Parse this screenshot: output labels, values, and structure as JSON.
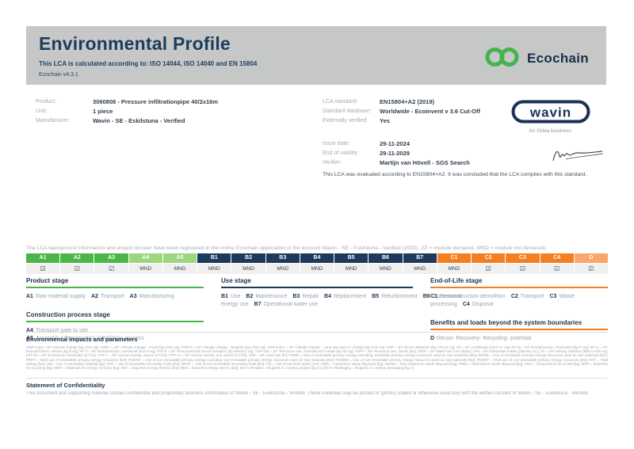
{
  "header": {
    "title": "Environmental Profile",
    "subtitle": "This LCA is calculated according to: ISO 14044, ISO 14040 and EN 15804",
    "version": "Ecochain v4.3.1",
    "logo_text": "Ecochain"
  },
  "colors": {
    "banner_bg": "#c6c7c7",
    "navy": "#1d3c5c",
    "ecochain_green": "#41b549",
    "module_a_green": "#4bb648",
    "module_a_light_green": "#9bd77c",
    "module_b_navy": "#1c3a5e",
    "module_c_orange": "#f57e20",
    "module_d_orange": "#f9a66b",
    "wavin_navy": "#1c3057"
  },
  "product_info": {
    "rows": [
      {
        "label": "Product:",
        "value": "3060808 - Pressure infiltrationpipe 40/2x16m"
      },
      {
        "label": "Unit:",
        "value": "1 piece"
      },
      {
        "label": "Manufacturer:",
        "value": "Wavin - SE - Eskilstuna - Verified"
      }
    ]
  },
  "lca_info": {
    "rows": [
      {
        "label": "LCA standard:",
        "value": "EN15804+A2 (2019)"
      },
      {
        "label": "Standard database:",
        "value": "Worldwide - Ecoinvent v 3.6 Cut-Off"
      },
      {
        "label": "Externally verified:",
        "value": "Yes"
      }
    ]
  },
  "validity_info": {
    "rows": [
      {
        "label": "Issue date:",
        "value": "29-11-2024"
      },
      {
        "label": "End of validity:",
        "value": "29-11-2029"
      },
      {
        "label": "Verifier:",
        "value": "Martijn van Hövell - SGS Search"
      }
    ],
    "evaluation_note": "This LCA was evaluated according to EN15804+A2. It was concluded that the LCA complies with this standard."
  },
  "brand": {
    "wavin_text": "wavin",
    "tagline": "An Orbia business."
  },
  "registration_note": "The LCA background information and project dossier have been registered in the online Ecochain application in the account Wavin - SE - Eskilstuna - Verified (2020). (☑ = module declared, MND = module not declared).",
  "module_table": {
    "declared_symbol": "☑",
    "not_declared_label": "MND",
    "modules": [
      {
        "code": "A1",
        "status": "declared",
        "group": "a-dark"
      },
      {
        "code": "A2",
        "status": "declared",
        "group": "a-dark"
      },
      {
        "code": "A3",
        "status": "declared",
        "group": "a-dark"
      },
      {
        "code": "A4",
        "status": "MND",
        "group": "a-light"
      },
      {
        "code": "A5",
        "status": "MND",
        "group": "a-light"
      },
      {
        "code": "B1",
        "status": "MND",
        "group": "b"
      },
      {
        "code": "B2",
        "status": "MND",
        "group": "b"
      },
      {
        "code": "B3",
        "status": "MND",
        "group": "b"
      },
      {
        "code": "B4",
        "status": "MND",
        "group": "b"
      },
      {
        "code": "B5",
        "status": "MND",
        "group": "b"
      },
      {
        "code": "B6",
        "status": "MND",
        "group": "b"
      },
      {
        "code": "B7",
        "status": "MND",
        "group": "b"
      },
      {
        "code": "C1",
        "status": "MND",
        "group": "c"
      },
      {
        "code": "C2",
        "status": "declared",
        "group": "c"
      },
      {
        "code": "C3",
        "status": "declared",
        "group": "c"
      },
      {
        "code": "C4",
        "status": "declared",
        "group": "c"
      },
      {
        "code": "D",
        "status": "declared",
        "group": "d"
      }
    ]
  },
  "stages": {
    "columns": [
      {
        "sections": [
          {
            "title": "Product stage",
            "accent": "green",
            "layout": "inline",
            "items": [
              {
                "code": "A1",
                "label": "Raw material supply"
              },
              {
                "code": "A2",
                "label": "Transport"
              },
              {
                "code": "A3",
                "label": "Manufacturing"
              }
            ]
          },
          {
            "title": "Construction process stage",
            "accent": "green",
            "layout": "block",
            "items": [
              {
                "code": "A4",
                "label": "Transport gate to site"
              },
              {
                "code": "A5",
                "label": "Assembly / Construction installation process"
              }
            ]
          }
        ]
      },
      {
        "sections": [
          {
            "title": "Use stage",
            "accent": "navy",
            "layout": "inline",
            "items": [
              {
                "code": "B1",
                "label": "Use"
              },
              {
                "code": "B2",
                "label": "Maintenance"
              },
              {
                "code": "B3",
                "label": "Repair"
              },
              {
                "code": "B4",
                "label": "Replacement"
              },
              {
                "code": "B5",
                "label": "Refurbishment"
              },
              {
                "code": "B6",
                "label": "Operational energy use"
              },
              {
                "code": "B7",
                "label": "Operational water use"
              }
            ]
          }
        ]
      },
      {
        "sections": [
          {
            "title": "End-of-Life stage",
            "accent": "orange",
            "layout": "inline",
            "items": [
              {
                "code": "C1",
                "label": "De-construction demolition"
              },
              {
                "code": "C2",
                "label": "Transport"
              },
              {
                "code": "C3",
                "label": "Waste processing"
              },
              {
                "code": "C4",
                "label": "Disposal"
              }
            ]
          },
          {
            "title": "Benefits and loads beyond the system boundaries",
            "accent": "orange",
            "layout": "inline",
            "items": [
              {
                "code": "D",
                "label": "Reuse- Recovery- Recycling- potential"
              }
            ]
          }
        ]
      }
    ]
  },
  "footer": {
    "impacts_title": "Environmental impacts and parameters",
    "impacts_text": "GWP-total = EF Climate change [kg CO2 eq]; GWP-f = EF Climate change - Fossil [kg CO2 eq]; GWP-b = EF Climate change - Biogenic [kg CO2 eq]; GWP-lu/luc = EF Climate change - Land use and LU change [kg CO2 eq]; ODP = EF Ozone depletion [kg CFC11 eq]; AP = EF Acidification [mol H+ eq]; EP-fw = EF Eutrophication, freshwater [kg P eq]; EP-m = EF Eutrophication, marine [kg N eq]; EP-T = EF Eutrophication, terrestrial [mol N eq]; POCP = EF Photochemical ozone formation [kg NMVOC eq]; ADP-mm = EF Resource use, minerals and metals [kg Sb eq]; ADP-f = EF Resource use, fossils [MJ]; WDP = EF Water use [m3 depriv.]; PM = EF Particulate matter [disease inc.]; IR = EF Ionising radiation [kBq U-235 eq]; ETP-fw = EF Ecotoxicity, freshwater [CTUe]; HTP-c = EF Human toxicity, cancer [CTUh]; HTP-nc = EF Human toxicity, non-cancer [CTUh]; SQP = EF Land use [Pt]; PERE = Use of renewable primary energy excluding renewable primary energy resources used as raw materials [MJ]; PERM = Use of renewable primary energy resources used as raw materials [MJ]; PERT = Total use of renewable primary energy resources [MJ]; PENRE = Use of non-renewable primary energy excluding non-renewable primary energy resources used as raw materials [MJ]; PENRM = Use of non-renewable primary energy resources used as raw materials [MJ]; PENRT = Total use of non-renewable primary energy resources [MJ]; PET = Total energy [MJ]; SM = Use of secondary material [kg]; RSF = Use of renewable secondary fuels [MJ]; NRSF = Use of non-renewable secondary fuels [MJ]; FW = Use of net fresh water [m3]; HWD = Hazardous waste disposed [kg]; NHWD = Non-hazardous waste disposed [kg]; RWD = Radioactive waste disposed [kg]; CRU = Components for re-use [kg]; MFR = Materials for recycling [kg]; MER = Materials for energy recovery [kg]; EET = Exported energy thermic [MJ]; EEE = Exported energy electric [MJ]; BIO-C-Product = Biogenic C content, product [kg C]; BIO-C-Packaging = Biogenic C content, packaging [kg C]",
    "confidentiality_title": "Statement of Confidentiality",
    "confidentiality_text": "This document and supporting material contain confidential and proprietary business information of Wavin - SE - Eskilstuna - Verified. These materials may be printed or (photo) copied or otherwise used only with the written consent of Wavin - SE - Eskilstuna - Verified."
  }
}
